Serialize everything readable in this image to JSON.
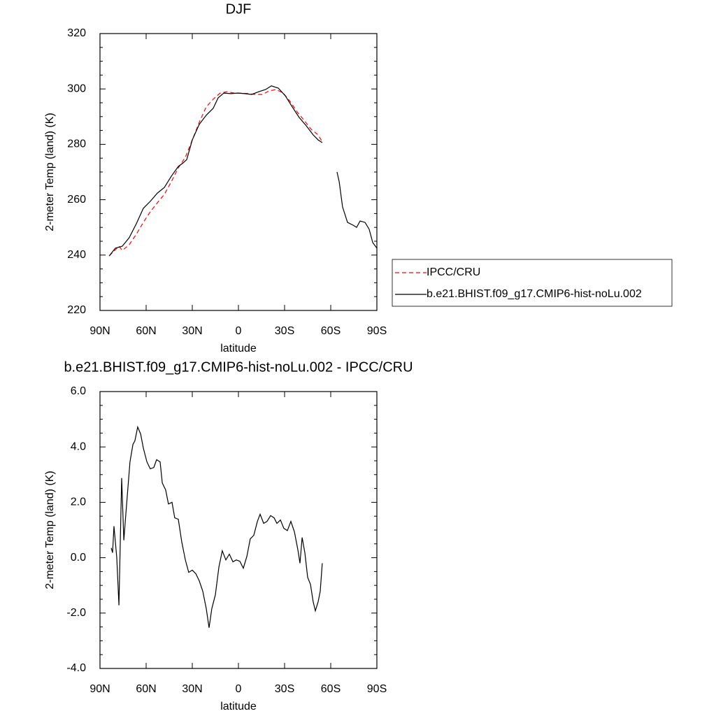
{
  "chart_data": [
    {
      "type": "line",
      "title": "DJF",
      "xlabel": "latitude",
      "ylabel": "2-meter Temp (land) (K)",
      "xlim": [
        90,
        -90
      ],
      "xticks": [
        {
          "value": 90,
          "label": "90N"
        },
        {
          "value": 60,
          "label": "60N"
        },
        {
          "value": 30,
          "label": "30N"
        },
        0,
        {
          "value": -30,
          "label": "30S"
        },
        {
          "value": -60,
          "label": "60S"
        },
        {
          "value": -90,
          "label": "90S"
        }
      ],
      "ylim": [
        220,
        320
      ],
      "yticks": [
        220,
        240,
        260,
        280,
        300,
        320
      ],
      "legend": "right",
      "series": [
        {
          "name": "IPCC/CRU",
          "color": "#ff0000",
          "dash": true,
          "x": [
            84,
            77.7,
            75.5,
            71,
            66.4,
            61.8,
            57.3,
            52.7,
            48.2,
            43.6,
            39.1,
            34.5,
            30,
            25.5,
            20.9,
            16.4,
            11.8,
            7.3,
            2.7,
            -1.8,
            -6.4,
            -10.9,
            -15.5,
            -20,
            -24.5,
            -29.1,
            -33.6,
            -38.2,
            -42.7,
            -47.3,
            -51.8,
            -54.5
          ],
          "values": [
            239.7,
            243.2,
            241.7,
            243.7,
            247.5,
            251.8,
            255.6,
            258.9,
            261.9,
            266.5,
            271.5,
            275.3,
            281.6,
            287.9,
            293.5,
            296.3,
            298.5,
            299.0,
            298.5,
            298.5,
            298.3,
            298.0,
            298.0,
            299.3,
            299.8,
            298.5,
            295.5,
            291.7,
            288.7,
            285.4,
            283.4,
            280.9
          ]
        },
        {
          "name": "b.e21.BHIST.f09_g17.CMIP6-hist-noLu.002",
          "color": "#000000",
          "dash": false,
          "x": [
            84,
            80,
            75.5,
            71,
            66.4,
            61.8,
            57.3,
            52.7,
            48.2,
            43.6,
            39.1,
            35.9,
            33.6,
            30,
            25.5,
            20.9,
            16.4,
            13.2,
            9.5,
            5,
            0.5,
            -4,
            -8.6,
            -13.2,
            -17.7,
            -21.4,
            -25.9,
            -30.5,
            -35,
            -39.5,
            -44.1,
            -48.6,
            -51.8,
            -54.5,
            -59,
            -64.1,
            -65.5,
            -67.7,
            -70.9,
            -74.5,
            -76.8,
            -79.1,
            -82.3,
            -85,
            -87.3,
            -90
          ],
          "values": [
            239.7,
            242.5,
            243.2,
            246.3,
            251.3,
            256.9,
            259.4,
            262.4,
            264.4,
            268.5,
            272.0,
            273.3,
            274.5,
            281.6,
            287.2,
            290.5,
            293.0,
            296.8,
            298.5,
            298.3,
            298.5,
            298.3,
            298.0,
            299.0,
            299.8,
            301.1,
            300.3,
            297.5,
            293.5,
            289.7,
            286.7,
            283.4,
            281.6,
            280.6,
            null,
            270.0,
            266.5,
            257.4,
            251.8,
            250.8,
            250.0,
            252.3,
            251.8,
            249.3,
            244.5,
            242.5
          ]
        }
      ]
    },
    {
      "type": "line",
      "title": "b.e21.BHIST.f09_g17.CMIP6-hist-noLu.002 - IPCC/CRU",
      "xlabel": "latitude",
      "ylabel": "2-meter Temp (land) (K)",
      "xlim": [
        90,
        -90
      ],
      "xticks": [
        {
          "value": 90,
          "label": "90N"
        },
        {
          "value": 60,
          "label": "60N"
        },
        {
          "value": 30,
          "label": "30N"
        },
        0,
        {
          "value": -30,
          "label": "30S"
        },
        {
          "value": -60,
          "label": "60S"
        },
        {
          "value": -90,
          "label": "90S"
        }
      ],
      "ylim": [
        -4,
        6
      ],
      "yticks": [
        {
          "value": -4,
          "label": "-4.0"
        },
        {
          "value": -2,
          "label": "-2.0"
        },
        {
          "value": 0,
          "label": "0.0"
        },
        {
          "value": 2,
          "label": "2.0"
        },
        {
          "value": 4,
          "label": "4.0"
        },
        {
          "value": 6,
          "label": "6.0"
        }
      ],
      "color": "#000000",
      "x": [
        82.7,
        81.8,
        80.9,
        79.1,
        77.7,
        75.9,
        74.5,
        72.7,
        70.5,
        68.6,
        67.3,
        65.5,
        63.6,
        61.8,
        59.5,
        57.3,
        55,
        53.2,
        50.9,
        49.5,
        47.3,
        45.5,
        43.2,
        41.4,
        39.1,
        36.8,
        34.5,
        32.3,
        30,
        27.7,
        25.5,
        23.2,
        20.9,
        19.1,
        17.3,
        15,
        12.7,
        10.5,
        8.2,
        5.9,
        3.6,
        1.4,
        -0.9,
        -3.2,
        -5.5,
        -7.7,
        -10,
        -12.3,
        -14.1,
        -16.4,
        -18.6,
        -20.9,
        -23.2,
        -25,
        -27.3,
        -29.5,
        -31.8,
        -34.1,
        -36.4,
        -38.6,
        -40,
        -41.4,
        -43.2,
        -45,
        -46.8,
        -48.6,
        -50,
        -51.8,
        -53.2,
        -54.5
      ],
      "values": [
        0.35,
        0.18,
        1.14,
        0,
        -1.72,
        2.88,
        0.63,
        1.94,
        3.46,
        4.09,
        4.22,
        4.72,
        4.47,
        3.96,
        3.46,
        3.21,
        3.26,
        3.54,
        3.46,
        2.7,
        2.45,
        1.94,
        2.0,
        1.44,
        1.39,
        0.56,
        -0.08,
        -0.53,
        -0.45,
        -0.58,
        -0.83,
        -1.21,
        -1.84,
        -2.53,
        -1.84,
        -1.34,
        -0.33,
        0.25,
        -0.08,
        0.13,
        -0.15,
        -0.08,
        -0.13,
        -0.38,
        0.05,
        0.68,
        0.81,
        1.31,
        1.57,
        1.24,
        1.31,
        1.52,
        1.44,
        1.24,
        1.36,
        1.06,
        0.98,
        1.31,
        0.93,
        0.3,
        -0.2,
        0.73,
        0.18,
        -0.71,
        -0.96,
        -1.59,
        -1.92,
        -1.59,
        -1.21,
        -0.2
      ]
    }
  ]
}
